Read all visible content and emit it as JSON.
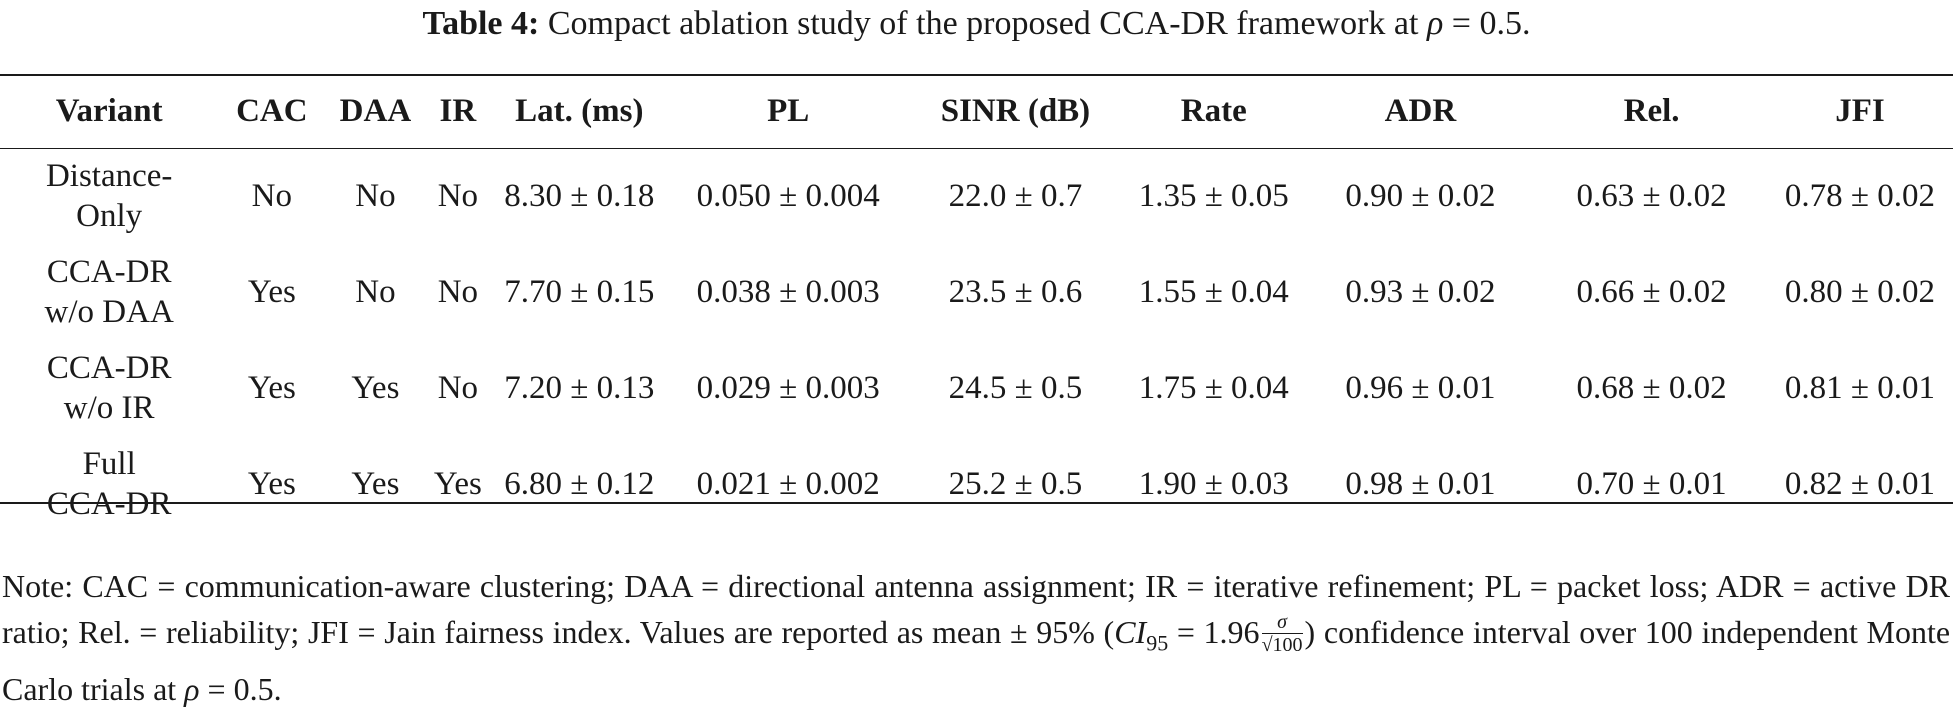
{
  "caption": {
    "label": "Table 4:",
    "text": "Compact ablation study of the proposed CCA-DR framework at",
    "rho_symbol": "ρ",
    "rho_value": "= 0.5."
  },
  "table": {
    "headers": [
      "Variant",
      "CAC",
      "DAA",
      "IR",
      "Lat. (ms)",
      "PL",
      "SINR (dB)",
      "Rate",
      "ADR",
      "Rel.",
      "JFI"
    ],
    "rows": [
      {
        "variant_line1": "Distance-",
        "variant_line2": "Only",
        "cac": "No",
        "daa": "No",
        "ir": "No",
        "lat": "8.30 ± 0.18",
        "pl": "0.050 ± 0.004",
        "sinr": "22.0 ± 0.7",
        "rate": "1.35 ± 0.05",
        "adr": "0.90 ± 0.02",
        "rel": "0.63 ± 0.02",
        "jfi": "0.78 ± 0.02"
      },
      {
        "variant_line1": "CCA-DR",
        "variant_line2": "w/o DAA",
        "cac": "Yes",
        "daa": "No",
        "ir": "No",
        "lat": "7.70 ± 0.15",
        "pl": "0.038 ± 0.003",
        "sinr": "23.5 ± 0.6",
        "rate": "1.55 ± 0.04",
        "adr": "0.93 ± 0.02",
        "rel": "0.66 ± 0.02",
        "jfi": "0.80 ± 0.02"
      },
      {
        "variant_line1": "CCA-DR",
        "variant_line2": "w/o IR",
        "cac": "Yes",
        "daa": "Yes",
        "ir": "No",
        "lat": "7.20 ± 0.13",
        "pl": "0.029 ± 0.003",
        "sinr": "24.5 ± 0.5",
        "rate": "1.75 ± 0.04",
        "adr": "0.96 ± 0.01",
        "rel": "0.68 ± 0.02",
        "jfi": "0.81 ± 0.01"
      },
      {
        "variant_line1": "Full",
        "variant_line2": "CCA-DR",
        "cac": "Yes",
        "daa": "Yes",
        "ir": "Yes",
        "lat": "6.80 ± 0.12",
        "pl": "0.021 ± 0.002",
        "sinr": "25.2 ± 0.5",
        "rate": "1.90 ± 0.03",
        "adr": "0.98 ± 0.01",
        "rel": "0.70 ± 0.01",
        "jfi": "0.82 ± 0.01"
      }
    ]
  },
  "note": {
    "line1": "Note: CAC = communication-aware clustering; DAA = directional antenna assignment; IR = iterative refinement;",
    "line2": "PL = packet loss; ADR = active DR ratio; Rel. = reliability; JFI = Jain fairness index. Values are reported as mean ± 95%",
    "ci_open": "(",
    "ci_symbol": "CI",
    "ci_subscript": "95",
    "ci_eq": " = 1.96",
    "frac_num": "σ",
    "frac_den": "√100",
    "line3_rest": ") confidence interval over 100 independent Monte Carlo trials at",
    "rho_symbol": "ρ",
    "rho_value": "= 0.5."
  }
}
